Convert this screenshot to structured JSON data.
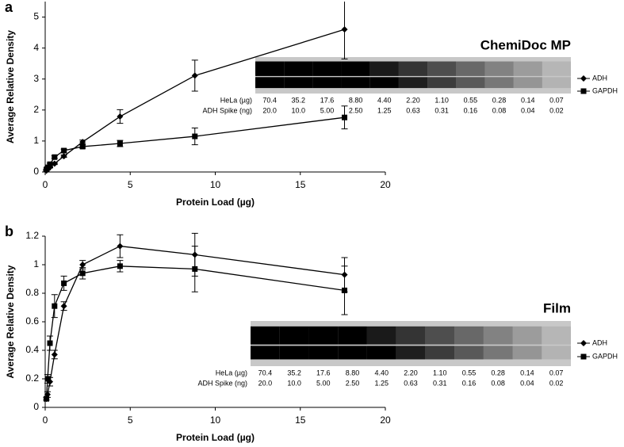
{
  "chart_data": [
    {
      "type": "line",
      "panel": "a",
      "xlabel": "Protein Load (µg)",
      "ylabel": "Average Relative Density",
      "x": [
        17.6,
        8.8,
        4.4,
        2.2,
        1.1,
        0.55,
        0.28,
        0.14,
        0.07
      ],
      "xlim": [
        0,
        20
      ],
      "xticks": [
        0,
        5,
        10,
        15,
        20
      ],
      "ylim": [
        0,
        5.5
      ],
      "yticks": [
        0,
        1,
        2,
        3,
        4,
        5
      ],
      "series": [
        {
          "name": "ADH",
          "marker": "diamond",
          "color": "#000000",
          "values": [
            4.6,
            3.11,
            1.79,
            0.97,
            0.51,
            0.27,
            0.15,
            0.08,
            0.04
          ],
          "errors": [
            0.95,
            0.5,
            0.22,
            0.06,
            0.04,
            0.03,
            0.02,
            0.01,
            0.01
          ]
        },
        {
          "name": "GAPDH",
          "marker": "square",
          "color": "#000000",
          "values": [
            1.76,
            1.15,
            0.92,
            0.82,
            0.69,
            0.48,
            0.25,
            0.15,
            0.08
          ],
          "errors": [
            0.37,
            0.27,
            0.1,
            0.05,
            0.05,
            0.04,
            0.03,
            0.02,
            0.01
          ]
        }
      ],
      "inset": {
        "title": "ChemiDoc MP",
        "row_labels": [
          "HeLa (µg)",
          "ADH Spike (ng)"
        ],
        "rows": [
          [
            "70.4",
            "35.2",
            "17.6",
            "8.80",
            "4.40",
            "2.20",
            "1.10",
            "0.55",
            "0.28",
            "0.14",
            "0.07"
          ],
          [
            "20.0",
            "10.0",
            "5.00",
            "2.50",
            "1.25",
            "0.63",
            "0.31",
            "0.16",
            "0.08",
            "0.04",
            "0.02"
          ]
        ]
      }
    },
    {
      "type": "line",
      "panel": "b",
      "xlabel": "Protein Load (µg)",
      "ylabel": "Average Relative Density",
      "x": [
        17.6,
        8.8,
        4.4,
        2.2,
        1.1,
        0.55,
        0.28,
        0.14,
        0.07
      ],
      "xlim": [
        0,
        20
      ],
      "xticks": [
        0,
        5,
        10,
        15,
        20
      ],
      "ylim": [
        0,
        1.2
      ],
      "yticks": [
        0,
        0.2,
        0.4,
        0.6,
        0.8,
        1,
        1.2
      ],
      "series": [
        {
          "name": "ADH",
          "marker": "diamond",
          "color": "#000000",
          "values": [
            0.93,
            1.07,
            1.13,
            1.0,
            0.71,
            0.37,
            0.18,
            0.09,
            0.06
          ],
          "errors": [
            0.12,
            0.15,
            0.08,
            0.03,
            0.03,
            0.03,
            0.03,
            0.02,
            0.01
          ]
        },
        {
          "name": "GAPDH",
          "marker": "square",
          "color": "#000000",
          "values": [
            0.82,
            0.97,
            0.99,
            0.94,
            0.87,
            0.71,
            0.45,
            0.2,
            0.06
          ],
          "errors": [
            0.17,
            0.16,
            0.04,
            0.04,
            0.05,
            0.08,
            0.05,
            0.03,
            0.01
          ]
        }
      ],
      "inset": {
        "title": "Film",
        "row_labels": [
          "HeLa (µg)",
          "ADH Spike (ng)"
        ],
        "rows": [
          [
            "70.4",
            "35.2",
            "17.6",
            "8.80",
            "4.40",
            "2.20",
            "1.10",
            "0.55",
            "0.28",
            "0.14",
            "0.07"
          ],
          [
            "20.0",
            "10.0",
            "5.00",
            "2.50",
            "1.25",
            "0.63",
            "0.31",
            "0.16",
            "0.08",
            "0.04",
            "0.02"
          ]
        ]
      }
    }
  ]
}
